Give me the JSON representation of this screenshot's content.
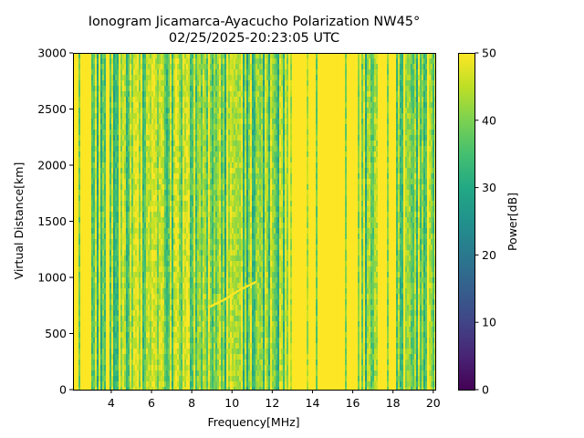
{
  "chart_data": {
    "type": "heatmap",
    "title": "Ionogram Jicamarca-Ayacucho Polarization NW45°",
    "subtitle": "02/25/2025-20:23:05 UTC",
    "xlabel": "Frequency[MHz]",
    "ylabel": "Virtual Distance[km]",
    "xlim": [
      2.1,
      20.1
    ],
    "ylim": [
      0,
      3000
    ],
    "x_ticks": [
      4,
      6,
      8,
      10,
      12,
      14,
      16,
      18,
      20
    ],
    "x_tick_labels": [
      "4",
      "6",
      "8",
      "10",
      "12",
      "14",
      "16",
      "18",
      "20"
    ],
    "y_ticks": [
      0,
      500,
      1000,
      1500,
      2000,
      2500,
      3000
    ],
    "y_tick_labels": [
      "0",
      "500",
      "1000",
      "1500",
      "2000",
      "2500",
      "3000"
    ],
    "colorbar": {
      "label": "Power[dB]",
      "range": [
        0,
        50
      ],
      "ticks": [
        0,
        10,
        20,
        30,
        40,
        50
      ],
      "tick_labels": [
        "0",
        "10",
        "20",
        "30",
        "40",
        "50"
      ],
      "colormap": "viridis"
    },
    "grid": false,
    "description_bands": [
      {
        "from_mhz": 2.1,
        "to_mhz": 3.0,
        "level_db": 50
      },
      {
        "from_mhz": 3.0,
        "to_mhz": 12.8,
        "level_db": 42
      },
      {
        "from_mhz": 12.8,
        "to_mhz": 16.4,
        "level_db": 49
      },
      {
        "from_mhz": 16.4,
        "to_mhz": 17.2,
        "level_db": 44
      },
      {
        "from_mhz": 17.2,
        "to_mhz": 18.1,
        "level_db": 49
      },
      {
        "from_mhz": 18.1,
        "to_mhz": 20.1,
        "level_db": 42
      }
    ],
    "trace": {
      "x_mhz": [
        8.8,
        9.6,
        10.4,
        11.2
      ],
      "y_km": [
        730,
        800,
        890,
        960
      ]
    }
  }
}
